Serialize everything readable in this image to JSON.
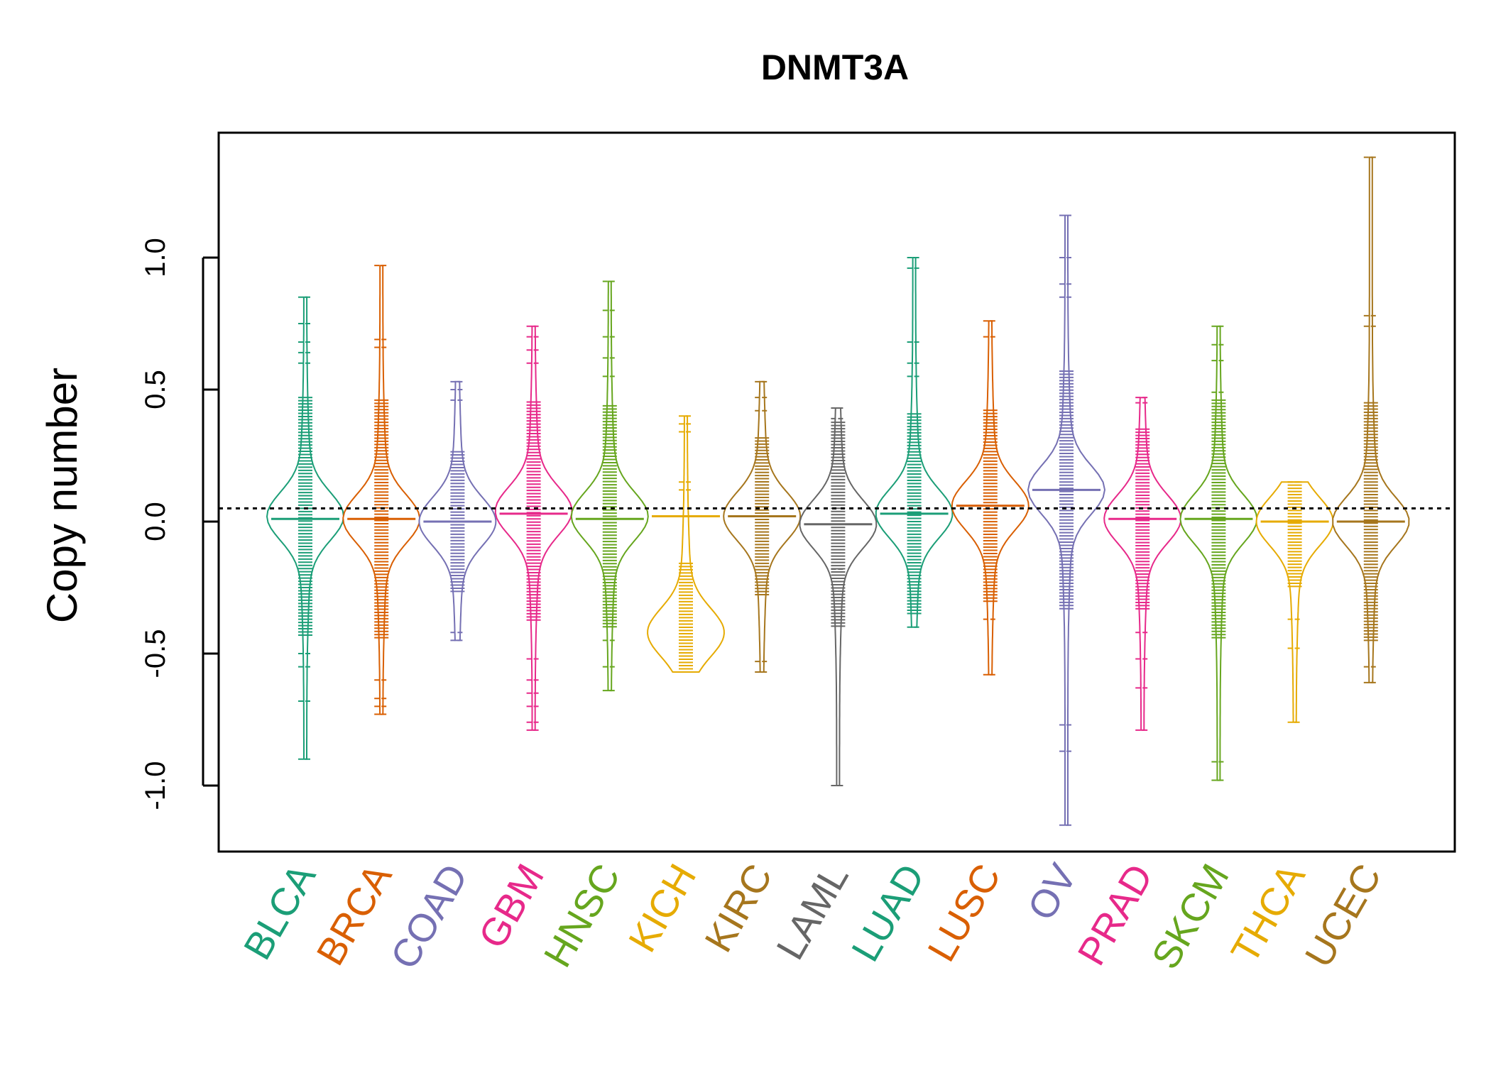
{
  "chart_data": {
    "type": "beanplot",
    "title": "DNMT3A",
    "ylabel": "Copy number",
    "xlabel": "",
    "ylim": [
      -1.25,
      1.48
    ],
    "yticks": [
      -1.0,
      -0.5,
      0.0,
      0.5,
      1.0
    ],
    "ytick_labels": [
      "-1.0",
      "-0.5",
      "0.0",
      "0.5",
      "1.0"
    ],
    "reference_line": 0.05,
    "grid": false,
    "categories": [
      "BLCA",
      "BRCA",
      "COAD",
      "GBM",
      "HNSC",
      "KICH",
      "KIRC",
      "LAML",
      "LUAD",
      "LUSC",
      "OV",
      "PRAD",
      "SKCM",
      "THCA",
      "UCEC"
    ],
    "colors": [
      "#1B9E77",
      "#D95F02",
      "#7570B3",
      "#E7298A",
      "#66A61E",
      "#E6AB02",
      "#A6761D",
      "#666666",
      "#1B9E77",
      "#D95F02",
      "#7570B3",
      "#E7298A",
      "#66A61E",
      "#E6AB02",
      "#A6761D"
    ],
    "series": [
      {
        "category": "BLCA",
        "min": -0.9,
        "max": 0.85,
        "median": 0.01,
        "density_peak": 0.02,
        "outliers": [
          0.85,
          0.75,
          0.68,
          0.64,
          0.6,
          -0.55,
          -0.5,
          -0.68,
          -0.9
        ]
      },
      {
        "category": "BRCA",
        "min": -0.73,
        "max": 0.97,
        "median": 0.01,
        "density_peak": 0.01,
        "outliers": [
          0.97,
          0.69,
          0.66,
          -0.6,
          -0.67,
          -0.7,
          -0.73
        ]
      },
      {
        "category": "COAD",
        "min": -0.45,
        "max": 0.53,
        "median": 0.0,
        "density_peak": 0.0,
        "outliers": [
          0.53,
          0.5,
          0.46,
          -0.42,
          -0.45
        ]
      },
      {
        "category": "GBM",
        "min": -0.79,
        "max": 0.74,
        "median": 0.03,
        "density_peak": 0.04,
        "outliers": [
          0.74,
          0.7,
          0.65,
          0.6,
          -0.52,
          -0.6,
          -0.65,
          -0.7,
          -0.76,
          -0.79
        ]
      },
      {
        "category": "HNSC",
        "min": -0.64,
        "max": 0.91,
        "median": 0.01,
        "density_peak": 0.02,
        "outliers": [
          0.91,
          0.8,
          0.7,
          0.62,
          0.55,
          -0.45,
          -0.55,
          -0.64
        ]
      },
      {
        "category": "KICH",
        "min": -0.57,
        "max": 0.4,
        "median": 0.02,
        "density_peak": -0.42,
        "outliers": [
          0.4,
          0.37,
          0.34,
          0.15,
          0.12
        ]
      },
      {
        "category": "KIRC",
        "min": -0.57,
        "max": 0.53,
        "median": 0.02,
        "density_peak": 0.02,
        "outliers": [
          0.53,
          0.47,
          0.42,
          -0.53,
          -0.57
        ]
      },
      {
        "category": "LAML",
        "min": -1.0,
        "max": 0.43,
        "median": -0.01,
        "density_peak": -0.01,
        "outliers": [
          0.43,
          0.39,
          -0.18,
          -1.0
        ]
      },
      {
        "category": "LUAD",
        "min": -0.4,
        "max": 1.0,
        "median": 0.03,
        "density_peak": 0.03,
        "outliers": [
          1.0,
          0.96,
          0.68,
          0.6,
          0.55,
          -0.4
        ]
      },
      {
        "category": "LUSC",
        "min": -0.58,
        "max": 0.76,
        "median": 0.06,
        "density_peak": 0.06,
        "outliers": [
          0.76,
          0.7,
          -0.37,
          -0.58
        ]
      },
      {
        "category": "OV",
        "min": -1.15,
        "max": 1.16,
        "median": 0.12,
        "density_peak": 0.12,
        "outliers": [
          1.16,
          1.0,
          0.9,
          0.85,
          -0.77,
          -0.87,
          -1.15
        ]
      },
      {
        "category": "PRAD",
        "min": -0.79,
        "max": 0.47,
        "median": 0.01,
        "density_peak": 0.01,
        "outliers": [
          0.47,
          0.45,
          -0.42,
          -0.52,
          -0.63,
          -0.79
        ]
      },
      {
        "category": "SKCM",
        "min": -0.98,
        "max": 0.74,
        "median": 0.01,
        "density_peak": 0.01,
        "outliers": [
          0.74,
          0.67,
          0.61,
          0.49,
          -0.91,
          -0.98
        ]
      },
      {
        "category": "THCA",
        "min": -0.76,
        "max": 0.15,
        "median": 0.0,
        "density_peak": 0.0,
        "outliers": [
          0.15,
          -0.37,
          -0.48,
          -0.76
        ]
      },
      {
        "category": "UCEC",
        "min": -0.61,
        "max": 1.38,
        "median": 0.0,
        "density_peak": 0.0,
        "outliers": [
          1.38,
          0.78,
          0.74,
          -0.55,
          -0.61
        ]
      }
    ]
  }
}
